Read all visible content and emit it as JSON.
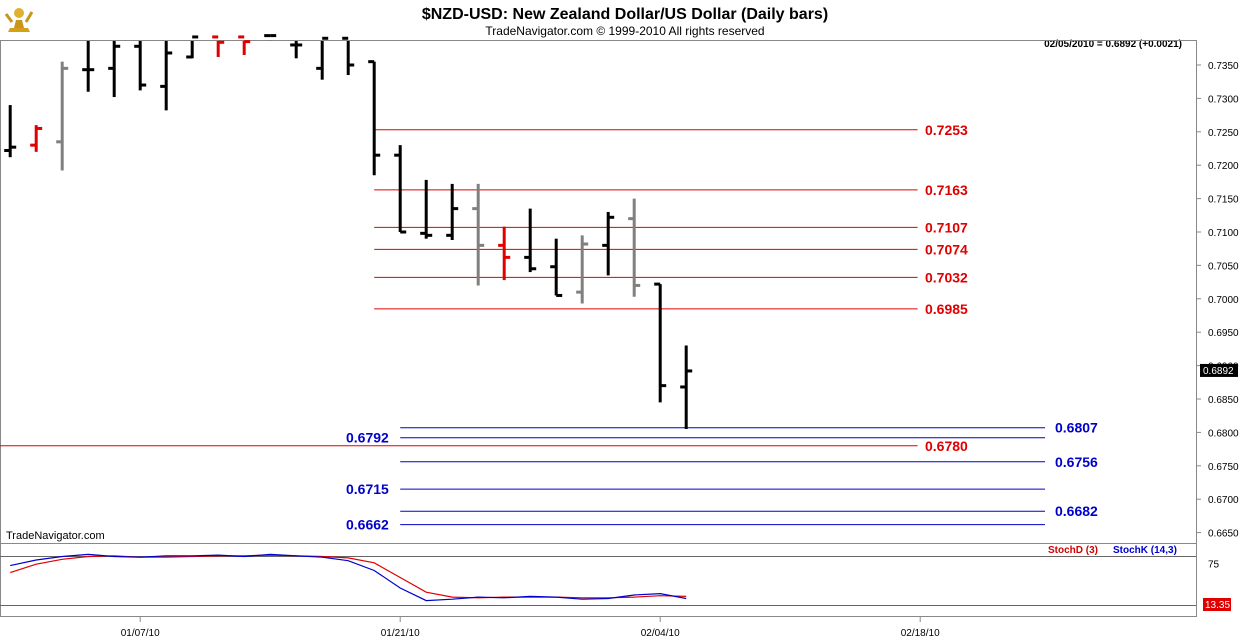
{
  "title": "$NZD-USD:  New Zealand Dollar/US Dollar  (Daily bars)",
  "subtitle": "TradeNavigator.com © 1999-2010 All rights reserved",
  "last_quote": "02/05/2010 = 0.6892 (+0.0021)",
  "watermark": "TradeNavigator.com",
  "current_price_label": "0.6892",
  "stoch_badge": "13.35",
  "stoch_legend": {
    "d": "StochD (3)",
    "k": "StochK (14,3)"
  },
  "colors": {
    "red": "#e00000",
    "blue": "#0000cc",
    "up_bar": "#000000",
    "gray_bar": "#808080",
    "badge": "#e00000"
  },
  "logo_icon": "trader-figure-icon",
  "chart_data": [
    {
      "type": "ohlc",
      "title": "$NZD-USD:  New Zealand Dollar/US Dollar  (Daily bars)",
      "ylim": [
        0.6635,
        0.7395
      ],
      "y_ticks": [
        "0.7350",
        "0.7300",
        "0.7250",
        "0.7200",
        "0.7150",
        "0.7100",
        "0.7050",
        "0.7000",
        "0.6950",
        "0.6900",
        "0.6850",
        "0.6800",
        "0.6750",
        "0.6700",
        "0.6650"
      ],
      "x_ticks": [
        "01/07/10",
        "01/21/10",
        "02/04/10",
        "02/18/10"
      ],
      "x_tick_index": [
        5,
        15,
        25,
        35
      ],
      "x_range": [
        -0.2,
        39.1
      ],
      "bars": [
        {
          "i": 0,
          "o": 0.7222,
          "h": 0.729,
          "l": 0.7212,
          "c": 0.7227,
          "color": "black"
        },
        {
          "i": 1,
          "o": 0.723,
          "h": 0.726,
          "l": 0.722,
          "c": 0.7255,
          "color": "red"
        },
        {
          "i": 2,
          "o": 0.7235,
          "h": 0.7355,
          "l": 0.7192,
          "c": 0.7345,
          "color": "gray"
        },
        {
          "i": 3,
          "o": 0.7343,
          "h": 0.7395,
          "l": 0.731,
          "c": 0.7343,
          "color": "black"
        },
        {
          "i": 4,
          "o": 0.7345,
          "h": 0.7395,
          "l": 0.7302,
          "c": 0.7378,
          "color": "black"
        },
        {
          "i": 5,
          "o": 0.7378,
          "h": 0.7395,
          "l": 0.7312,
          "c": 0.732,
          "color": "black"
        },
        {
          "i": 6,
          "o": 0.7318,
          "h": 0.7392,
          "l": 0.7282,
          "c": 0.7368,
          "color": "black"
        },
        {
          "i": 7,
          "o": 0.7362,
          "h": 0.7395,
          "l": 0.736,
          "c": 0.7392,
          "color": "black"
        },
        {
          "i": 8,
          "o": 0.7392,
          "h": 0.7395,
          "l": 0.7362,
          "c": 0.7384,
          "color": "red"
        },
        {
          "i": 9,
          "o": 0.7392,
          "h": 0.7395,
          "l": 0.7365,
          "c": 0.7385,
          "color": "red"
        },
        {
          "i": 10,
          "o": 0.7394,
          "h": 0.7395,
          "l": 0.7386,
          "c": 0.7394,
          "color": "black"
        },
        {
          "i": 11,
          "o": 0.738,
          "h": 0.7395,
          "l": 0.736,
          "c": 0.738,
          "color": "black"
        },
        {
          "i": 12,
          "o": 0.7345,
          "h": 0.7395,
          "l": 0.7328,
          "c": 0.739,
          "color": "black"
        },
        {
          "i": 13,
          "o": 0.739,
          "h": 0.7395,
          "l": 0.7335,
          "c": 0.735,
          "color": "black"
        },
        {
          "i": 14,
          "o": 0.7355,
          "h": 0.7355,
          "l": 0.7185,
          "c": 0.7215,
          "color": "black"
        },
        {
          "i": 15,
          "o": 0.7215,
          "h": 0.723,
          "l": 0.71,
          "c": 0.71,
          "color": "black"
        },
        {
          "i": 16,
          "o": 0.7098,
          "h": 0.7178,
          "l": 0.709,
          "c": 0.7095,
          "color": "black"
        },
        {
          "i": 17,
          "o": 0.7095,
          "h": 0.7172,
          "l": 0.7088,
          "c": 0.7135,
          "color": "black"
        },
        {
          "i": 18,
          "o": 0.7135,
          "h": 0.7172,
          "l": 0.702,
          "c": 0.708,
          "color": "gray"
        },
        {
          "i": 19,
          "o": 0.708,
          "h": 0.7108,
          "l": 0.7028,
          "c": 0.7062,
          "color": "red"
        },
        {
          "i": 20,
          "o": 0.7062,
          "h": 0.7135,
          "l": 0.704,
          "c": 0.7045,
          "color": "black"
        },
        {
          "i": 21,
          "o": 0.7048,
          "h": 0.709,
          "l": 0.7005,
          "c": 0.7005,
          "color": "black"
        },
        {
          "i": 22,
          "o": 0.701,
          "h": 0.7095,
          "l": 0.6993,
          "c": 0.7082,
          "color": "gray"
        },
        {
          "i": 23,
          "o": 0.708,
          "h": 0.713,
          "l": 0.7035,
          "c": 0.7122,
          "color": "black"
        },
        {
          "i": 24,
          "o": 0.712,
          "h": 0.715,
          "l": 0.7003,
          "c": 0.702,
          "color": "gray"
        },
        {
          "i": 25,
          "o": 0.7022,
          "h": 0.7022,
          "l": 0.6845,
          "c": 0.687,
          "color": "black"
        },
        {
          "i": 26,
          "o": 0.6868,
          "h": 0.693,
          "l": 0.6805,
          "c": 0.6892,
          "color": "black"
        }
      ],
      "levels": [
        {
          "value": 0.7253,
          "label": "0.7253",
          "color": "red",
          "x0": 14.0,
          "x1": 34.9,
          "label_side": "right"
        },
        {
          "value": 0.7163,
          "label": "0.7163",
          "color": "red",
          "x0": 14.0,
          "x1": 34.9,
          "label_side": "right"
        },
        {
          "value": 0.7107,
          "label": "0.7107",
          "color": "red",
          "x0": 14.0,
          "x1": 34.9,
          "label_side": "right"
        },
        {
          "value": 0.7074,
          "label": "0.7074",
          "color": "red",
          "x0": 14.0,
          "x1": 34.9,
          "label_side": "right"
        },
        {
          "value": 0.7032,
          "label": "0.7032",
          "color": "red",
          "x0": 14.0,
          "x1": 34.9,
          "label_side": "right"
        },
        {
          "value": 0.6985,
          "label": "0.6985",
          "color": "red",
          "x0": 14.0,
          "x1": 34.9,
          "label_side": "right"
        },
        {
          "value": 0.6807,
          "label": "0.6807",
          "color": "blue",
          "x0": 15.0,
          "x1": 39.8,
          "label_side": "right"
        },
        {
          "value": 0.6792,
          "label": "0.6792",
          "color": "blue",
          "x0": 15.0,
          "x1": 39.8,
          "label_side": "left"
        },
        {
          "value": 0.678,
          "label": "0.6780",
          "color": "red",
          "x0": -0.2,
          "x1": 34.9,
          "label_side": "right"
        },
        {
          "value": 0.6756,
          "label": "0.6756",
          "color": "blue",
          "x0": 15.0,
          "x1": 39.8,
          "label_side": "right"
        },
        {
          "value": 0.6715,
          "label": "0.6715",
          "color": "blue",
          "x0": 15.0,
          "x1": 39.8,
          "label_side": "left"
        },
        {
          "value": 0.6682,
          "label": "0.6682",
          "color": "blue",
          "x0": 15.0,
          "x1": 39.8,
          "label_side": "right"
        },
        {
          "value": 0.6662,
          "label": "0.6662",
          "color": "blue",
          "x0": 15.0,
          "x1": 39.8,
          "label_side": "left"
        }
      ]
    },
    {
      "type": "line",
      "title": "",
      "ylim": [
        0,
        100
      ],
      "y_ticks": [
        "75"
      ],
      "ref_lines": [
        85,
        15
      ],
      "series": [
        {
          "name": "StochD (3)",
          "color": "red",
          "x": [
            0,
            1,
            2,
            3,
            4,
            5,
            6,
            7,
            8,
            9,
            10,
            11,
            12,
            13,
            14,
            15,
            16,
            17,
            18,
            19,
            20,
            21,
            22,
            23,
            24,
            25,
            26
          ],
          "values": [
            62,
            74,
            81,
            85,
            86,
            84,
            84,
            85,
            86,
            86,
            87,
            86,
            85,
            83,
            76,
            55,
            34,
            27,
            26,
            27,
            27,
            27,
            26,
            26,
            27,
            29,
            28
          ]
        },
        {
          "name": "StochK (14,3)",
          "color": "blue",
          "x": [
            0,
            1,
            2,
            3,
            4,
            5,
            6,
            7,
            8,
            9,
            10,
            11,
            12,
            13,
            14,
            15,
            16,
            17,
            18,
            19,
            20,
            21,
            22,
            23,
            24,
            25,
            26
          ],
          "values": [
            72,
            80,
            85,
            88,
            85,
            84,
            86,
            86,
            87,
            85,
            88,
            86,
            84,
            79,
            65,
            40,
            22,
            24,
            27,
            26,
            28,
            27,
            24,
            25,
            30,
            32,
            25
          ]
        }
      ]
    }
  ]
}
